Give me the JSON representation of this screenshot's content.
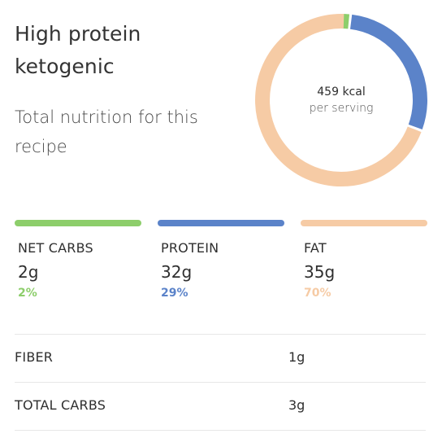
{
  "header": {
    "title": "High protein ketogenic",
    "subtitle": "Total nutrition for this recipe"
  },
  "donut": {
    "kcal": "459 kcal",
    "per_serving": "per serving"
  },
  "macros": [
    {
      "label": "NET CARBS",
      "value": "2g",
      "percent": "2%",
      "fraction": 0.02,
      "color": "#8dce6b"
    },
    {
      "label": "PROTEIN",
      "value": "32g",
      "percent": "29%",
      "fraction": 0.29,
      "color": "#5b83c9"
    },
    {
      "label": "FAT",
      "value": "35g",
      "percent": "70%",
      "fraction": 0.7,
      "color": "#f6cba5"
    }
  ],
  "details": [
    {
      "label": "FIBER",
      "value": "1g"
    },
    {
      "label": "TOTAL CARBS",
      "value": "3g"
    }
  ]
}
